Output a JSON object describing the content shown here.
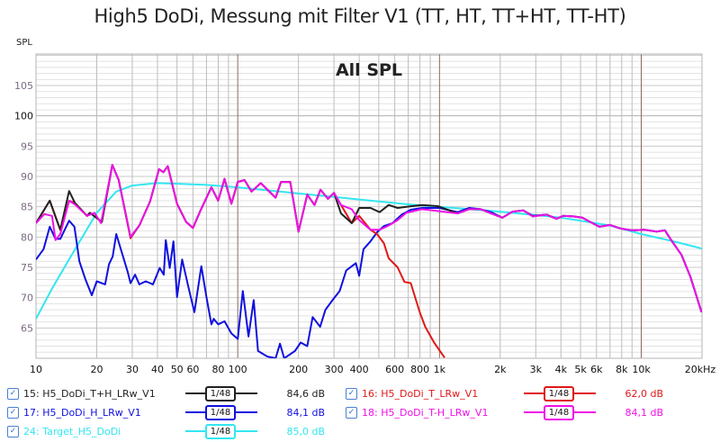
{
  "title": "High5 DoDi, Messung mit Filter V1 (TT, HT, TT+HT, TT-HT)",
  "chart_data": {
    "type": "line",
    "title": "High5 DoDi, Messung mit Filter V1 (TT, HT, TT+HT, TT-HT)",
    "annotation": "All SPL",
    "ylabel": "SPL",
    "xlabel": "Hz",
    "xscale": "log",
    "xlim": [
      10,
      20000
    ],
    "ylim": [
      60,
      110.2
    ],
    "grid": true,
    "yticks": [
      65,
      70,
      75,
      80,
      85,
      90,
      95,
      100,
      105
    ],
    "xticks": [
      {
        "v": 10,
        "l": "10"
      },
      {
        "v": 20,
        "l": "20"
      },
      {
        "v": 30,
        "l": "30"
      },
      {
        "v": 40,
        "l": "40"
      },
      {
        "v": 50,
        "l": "50"
      },
      {
        "v": 60,
        "l": "60"
      },
      {
        "v": 80,
        "l": "80"
      },
      {
        "v": 100,
        "l": "100"
      },
      {
        "v": 200,
        "l": "200"
      },
      {
        "v": 300,
        "l": "300"
      },
      {
        "v": 400,
        "l": "400"
      },
      {
        "v": 600,
        "l": "600"
      },
      {
        "v": 800,
        "l": "800"
      },
      {
        "v": 1000,
        "l": "1k"
      },
      {
        "v": 2000,
        "l": "2k"
      },
      {
        "v": 3000,
        "l": "3k"
      },
      {
        "v": 4000,
        "l": "4k"
      },
      {
        "v": 5000,
        "l": "5k"
      },
      {
        "v": 6000,
        "l": "6k"
      },
      {
        "v": 8000,
        "l": "8k"
      },
      {
        "v": 10000,
        "l": "10k"
      },
      {
        "v": 20000,
        "l": "20kHz"
      }
    ],
    "series": [
      {
        "name": "24: Target_H5_DoDi",
        "color": "#33e6f0",
        "value": "85,0 dB",
        "smoothing": "1/48",
        "x": [
          10,
          12,
          15,
          20,
          25,
          30,
          40,
          50,
          70,
          100,
          200,
          400,
          700,
          1000,
          2000,
          4000,
          7000,
          10000,
          14000,
          20000
        ],
        "y": [
          66.5,
          71.5,
          77,
          84,
          87.5,
          88.5,
          88.9,
          88.8,
          88.6,
          88.2,
          87.2,
          86.2,
          85.4,
          85,
          84.2,
          83.2,
          81.9,
          80.5,
          79.4,
          78.1
        ]
      },
      {
        "name": "17: H5_DoDi_H_LRw_V1",
        "color": "#1010e0",
        "value": "84,1 dB",
        "smoothing": "1/48",
        "x": [
          10,
          10.9,
          11.7,
          12.5,
          13.2,
          14.6,
          15.5,
          16.4,
          17.6,
          18.9,
          20,
          22,
          23,
          24,
          25,
          27,
          28.5,
          29.4,
          31,
          32.5,
          35,
          38,
          41,
          43,
          44,
          46,
          48,
          50,
          53,
          57,
          61,
          66,
          70,
          74,
          76,
          80,
          86,
          93,
          100,
          106,
          113,
          120,
          126,
          140,
          154,
          162,
          170,
          192,
          205,
          221,
          235,
          256,
          272,
          295,
          320,
          345,
          385,
          400,
          420,
          455,
          490,
          530,
          585,
          650,
          720,
          820,
          1000,
          1230,
          1400,
          1600,
          1800,
          2050,
          2300,
          2600,
          2900,
          3400,
          3800,
          4100,
          4600,
          5100,
          5500,
          6200,
          7000,
          7900,
          9000,
          10400,
          11900,
          13100,
          14200,
          15800,
          17500,
          19900
        ],
        "y": [
          76.3,
          78,
          81.7,
          79.7,
          79.7,
          82.7,
          81.7,
          76,
          73,
          70.4,
          72.7,
          72.2,
          75.5,
          76.8,
          80.5,
          76.8,
          74.2,
          72.4,
          73.8,
          72.2,
          72.7,
          72.2,
          74.9,
          73.8,
          79.5,
          74.9,
          79.3,
          70.1,
          76.3,
          71.7,
          67.6,
          75.2,
          70.1,
          65.6,
          66.5,
          65.6,
          66.1,
          64.1,
          63.2,
          71.1,
          63.6,
          69.6,
          61.2,
          60.3,
          60,
          62.4,
          60,
          61.2,
          62.6,
          62,
          66.8,
          65.2,
          68,
          69.6,
          71.1,
          74.5,
          75.7,
          73.6,
          78,
          79.3,
          80.8,
          81.8,
          82.3,
          83.7,
          84.5,
          84.8,
          84.8,
          84.1,
          84.8,
          84.6,
          84.1,
          83.2,
          84.2,
          84.4,
          83.5,
          83.7,
          83,
          83.5,
          83.4,
          83.2,
          82.6,
          81.7,
          82,
          81.4,
          81.1,
          81.2,
          80.9,
          81.1,
          79.3,
          77.1,
          73.5,
          67.6
        ]
      },
      {
        "name": "16: H5_DoDi_T_LRw_V1",
        "color": "#e01818",
        "value": "62,0 dB",
        "smoothing": "1/48",
        "x": [
          10,
          11.7,
          12.7,
          13.2,
          14.6,
          15.6,
          17.9,
          18.5,
          21.2,
          23.9,
          25.7,
          29.4,
          32.5,
          36.8,
          40.7,
          42.8,
          45,
          50,
          55.5,
          60,
          65,
          74,
          80,
          86,
          93,
          100,
          108,
          117,
          130,
          154,
          164,
          182,
          200,
          221,
          240,
          257,
          280,
          300,
          325,
          367,
          400,
          455,
          490,
          530,
          560,
          620,
          670,
          720,
          800,
          850,
          940,
          1060
        ],
        "y": [
          82.3,
          86,
          82.7,
          81.2,
          86,
          85.6,
          83.5,
          84,
          82.5,
          91.9,
          89.4,
          79.8,
          81.9,
          85.9,
          91.2,
          90.7,
          91.7,
          85.5,
          82.5,
          81.5,
          84.2,
          88.2,
          86,
          89.6,
          85.5,
          89.1,
          89.4,
          87.5,
          88.9,
          86.5,
          89.1,
          89.1,
          80.9,
          87,
          85.3,
          87.8,
          86.3,
          87.3,
          85.3,
          82.3,
          83.5,
          81.2,
          80.5,
          79,
          76.5,
          75,
          72.6,
          72.4,
          67.5,
          65.2,
          62.6,
          60.1
        ]
      },
      {
        "name": "15: H5_DoDi_T+H_LRw_V1",
        "color": "#222222",
        "value": "84,6 dB",
        "smoothing": "1/48",
        "x": [
          10,
          11.7,
          12.7,
          13.2,
          14.6,
          15.6,
          17.9,
          18.5,
          21.2,
          23.9,
          25.7,
          29.4,
          32.5,
          36.8,
          40.7,
          42.8,
          45,
          50,
          55.5,
          60,
          65,
          74,
          80,
          86,
          93,
          100,
          108,
          117,
          130,
          154,
          164,
          182,
          200,
          221,
          240,
          257,
          280,
          300,
          325,
          367,
          400,
          455,
          505,
          560,
          620,
          685,
          818,
          980,
          1230,
          1400,
          1600,
          1800,
          2050,
          2300,
          2600,
          2900,
          3400,
          3800,
          4100,
          4600,
          5100,
          5500,
          6200,
          7000,
          7900,
          9000,
          10400,
          11900,
          13100,
          14200,
          15800,
          17500,
          19900
        ],
        "y": [
          82.3,
          86,
          82.7,
          81.2,
          87.6,
          85.6,
          83.5,
          84,
          82.5,
          91.9,
          89.4,
          80,
          81.9,
          85.9,
          91.2,
          90.7,
          91.7,
          85.5,
          82.5,
          81.5,
          84.2,
          88.2,
          86,
          89.6,
          85.5,
          89.1,
          89.4,
          87.5,
          88.9,
          86.5,
          89.1,
          89.1,
          80.9,
          87,
          85.3,
          87.8,
          86.3,
          87.3,
          83.9,
          82.3,
          84.8,
          84.8,
          84.1,
          85.3,
          84.8,
          85,
          85.3,
          85.1,
          83.9,
          84.6,
          84.6,
          83.9,
          83.2,
          84.2,
          84.4,
          83.4,
          83.7,
          83,
          83.5,
          83.4,
          83.2,
          82.6,
          81.7,
          82,
          81.4,
          81.1,
          81.2,
          80.9,
          81.1,
          79.3,
          77.1,
          73.5,
          67.6
        ]
      },
      {
        "name": "18: H5_DoDi_T-H_LRw_V1",
        "color": "#f010e8",
        "value": "84,1 dB",
        "smoothing": "1/48",
        "x": [
          10,
          11,
          12,
          12.5,
          13.2,
          14.6,
          15.7,
          17.9,
          19.5,
          21,
          23.9,
          25.7,
          29.4,
          32.5,
          36.8,
          40.7,
          42.8,
          45,
          50,
          55.5,
          60,
          65,
          74,
          80,
          86,
          93,
          100,
          108,
          117,
          130,
          154,
          164,
          182,
          200,
          221,
          240,
          257,
          280,
          300,
          325,
          367,
          400,
          455,
          505,
          560,
          620,
          685,
          818,
          980,
          1230,
          1400,
          1600,
          1800,
          2050,
          2300,
          2600,
          2900,
          3400,
          3800,
          4100,
          4600,
          5100,
          5500,
          6200,
          7000,
          7900,
          9000,
          10400,
          11900,
          13100,
          14200,
          15800,
          17500,
          19900
        ],
        "y": [
          82.3,
          83.8,
          83.5,
          79.5,
          80.5,
          86,
          85.3,
          83.5,
          84,
          82.3,
          91.9,
          89.4,
          80,
          81.9,
          85.9,
          91.2,
          90.7,
          91.7,
          85.5,
          82.5,
          81.5,
          84.2,
          88.2,
          86,
          89.6,
          85.5,
          89.1,
          89.4,
          87.5,
          88.9,
          86.5,
          89.1,
          89.1,
          80.9,
          87,
          85.3,
          87.8,
          86.3,
          87.3,
          85.3,
          84.6,
          82.8,
          81.2,
          81.2,
          81.9,
          82.8,
          84,
          84.6,
          84.3,
          83.9,
          84.6,
          84.6,
          83.9,
          83.2,
          84.2,
          84.4,
          83.4,
          83.7,
          83,
          83.5,
          83.4,
          83.2,
          82.6,
          81.7,
          82,
          81.4,
          81.1,
          81.2,
          80.9,
          81.1,
          79.3,
          77.1,
          73.5,
          67.6
        ]
      }
    ]
  },
  "legend": [
    {
      "label": "15: H5_DoDi_T+H_LRw_V1",
      "smoothing": "1/48",
      "value": "84,6 dB",
      "color": "#222222"
    },
    {
      "label": "16: H5_DoDi_T_LRw_V1",
      "smoothing": "1/48",
      "value": "62,0 dB",
      "color": "#e01818"
    },
    {
      "label": "17: H5_DoDi_H_LRw_V1",
      "smoothing": "1/48",
      "value": "84,1 dB",
      "color": "#1010e0"
    },
    {
      "label": "18: H5_DoDi_T-H_LRw_V1",
      "smoothing": "1/48",
      "value": "84,1 dB",
      "color": "#f010e8"
    },
    {
      "label": "24: Target_H5_DoDi",
      "smoothing": "1/48",
      "value": "85,0 dB",
      "color": "#33e6f0"
    }
  ]
}
